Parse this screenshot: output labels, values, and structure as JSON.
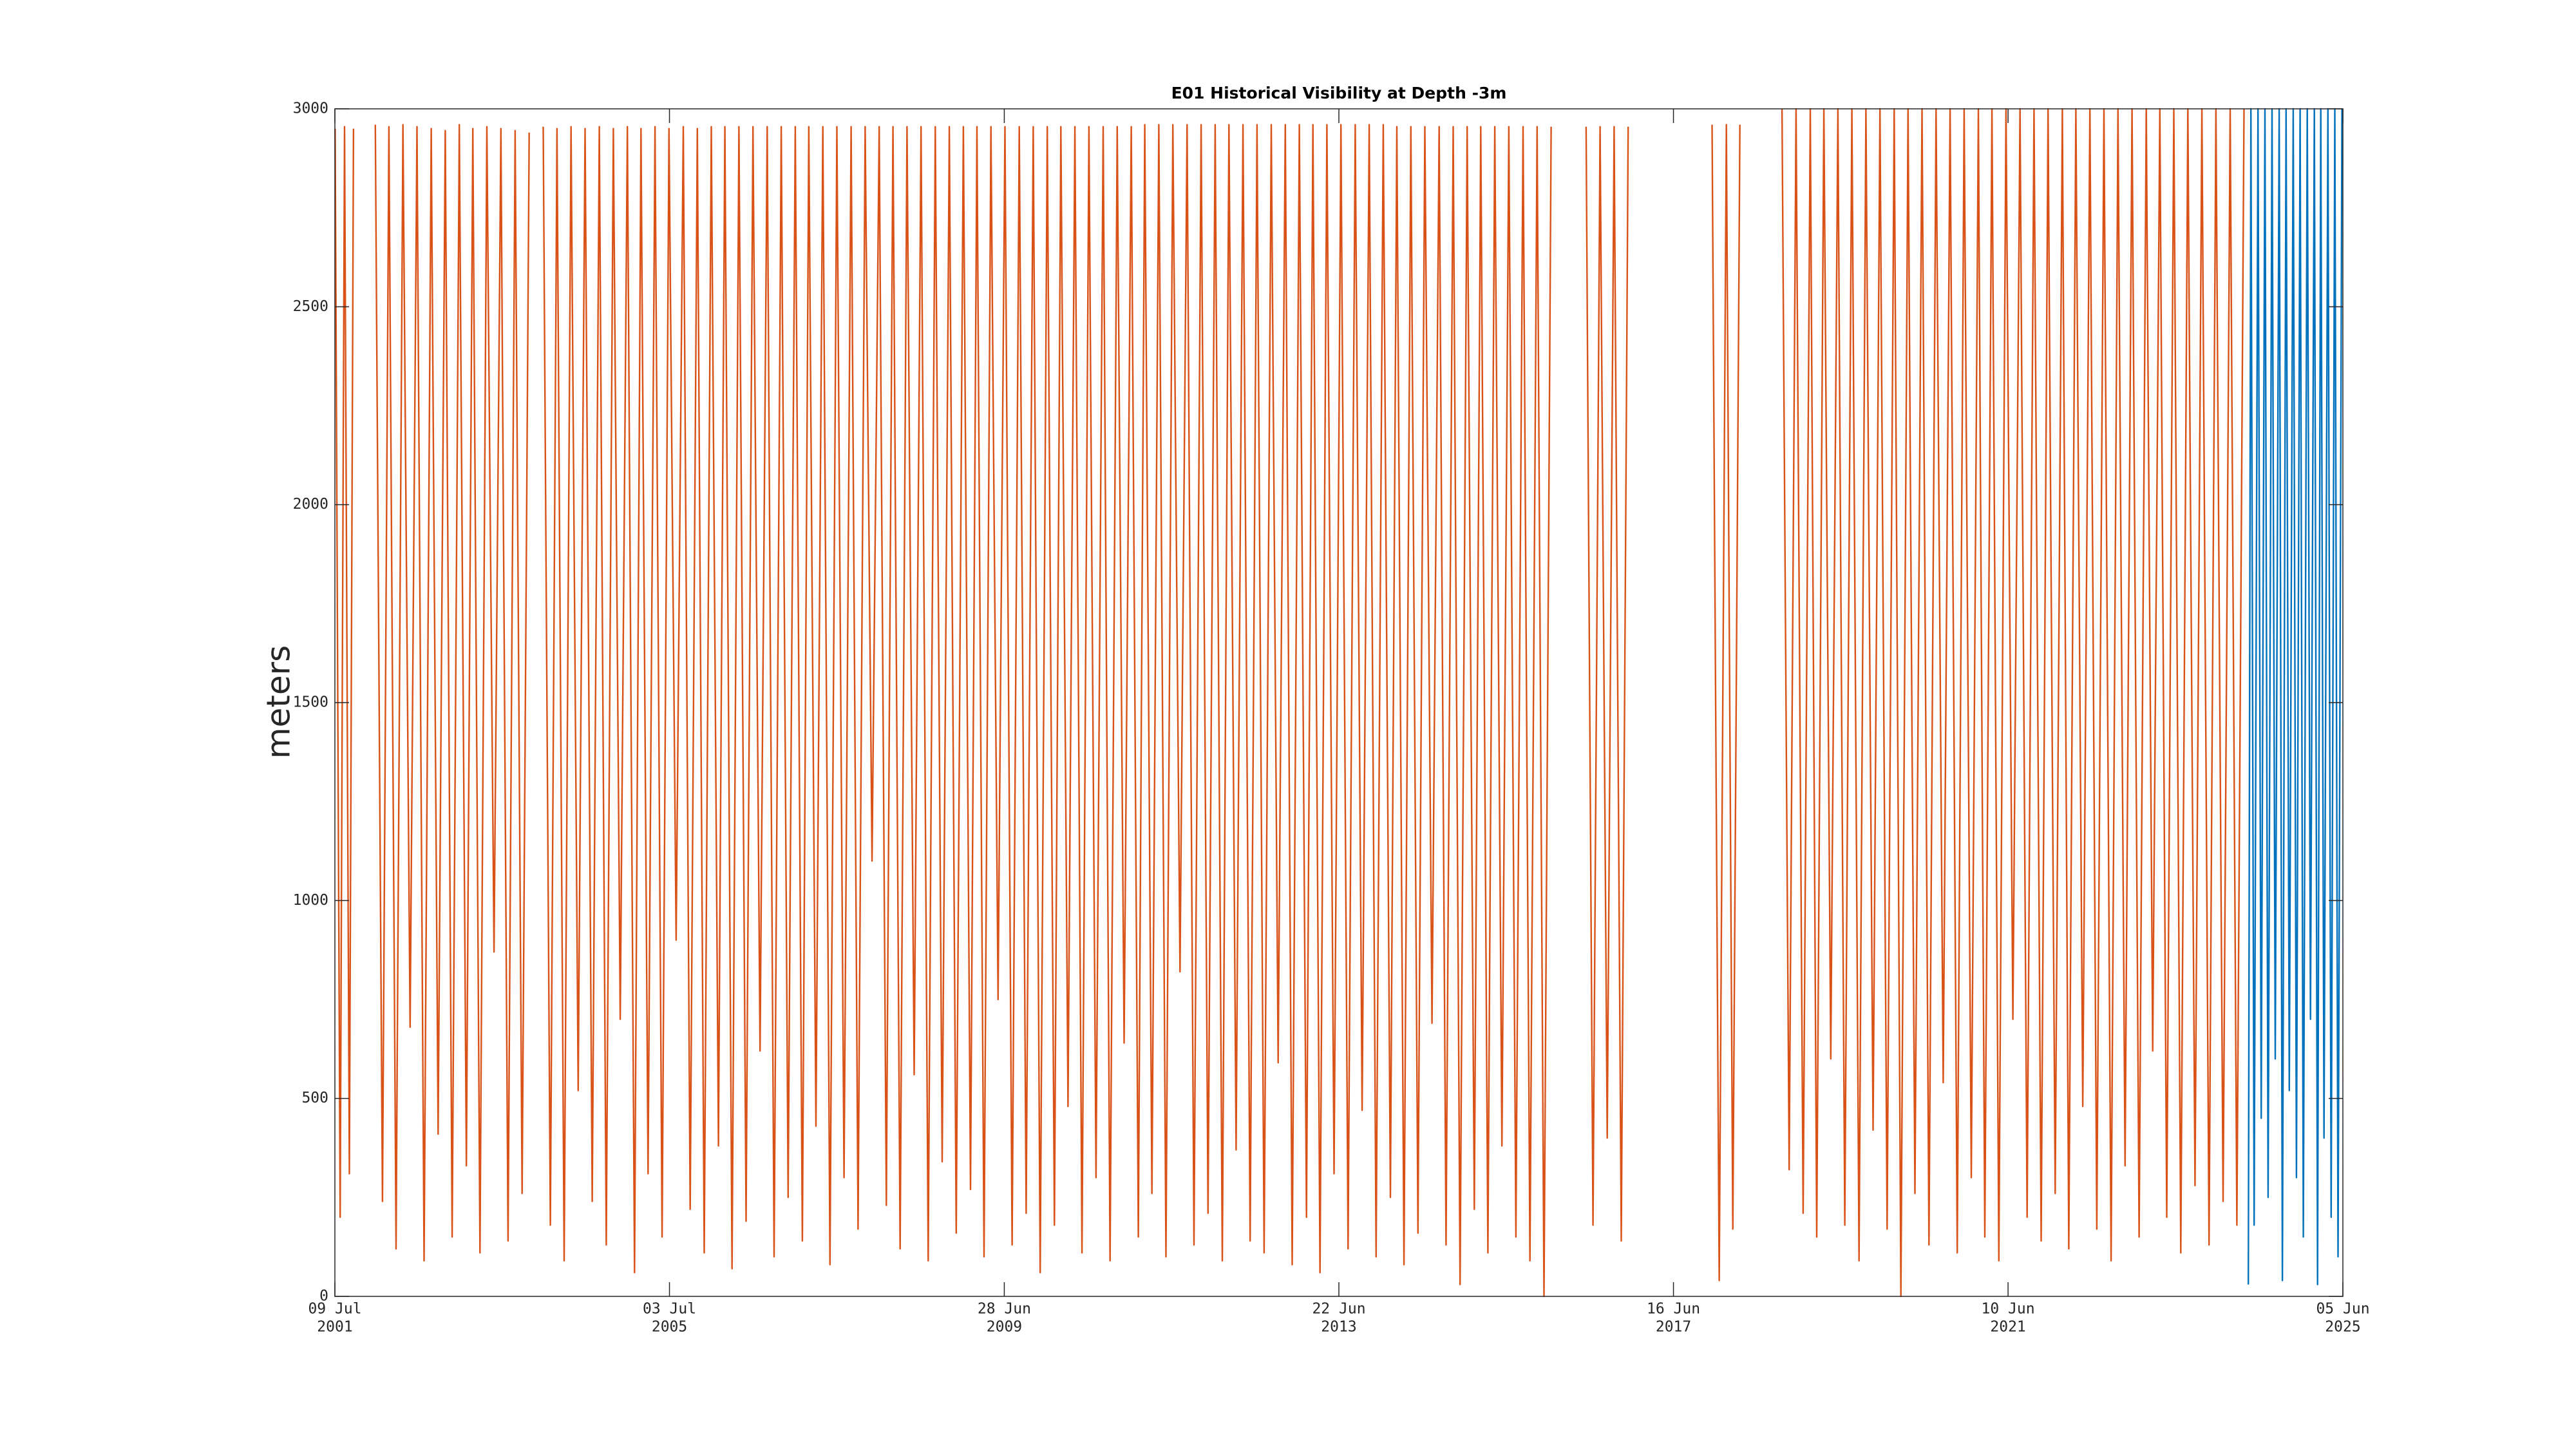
{
  "chart_data": {
    "type": "line",
    "title": "E01 Historical Visibility at Depth -3m",
    "ylabel": "meters",
    "xlim": [
      "2001-07-09",
      "2025-06-05"
    ],
    "xticks": [
      {
        "value": "2001-07-09",
        "label": [
          "09 Jul",
          "2001"
        ]
      },
      {
        "value": "2005-07-03",
        "label": [
          "03 Jul",
          "2005"
        ]
      },
      {
        "value": "2009-06-28",
        "label": [
          "28 Jun",
          "2009"
        ]
      },
      {
        "value": "2013-06-22",
        "label": [
          "22 Jun",
          "2013"
        ]
      },
      {
        "value": "2017-06-16",
        "label": [
          "16 Jun",
          "2017"
        ]
      },
      {
        "value": "2021-06-10",
        "label": [
          "10 Jun",
          "2021"
        ]
      },
      {
        "value": "2025-06-05",
        "label": [
          "05 Jun",
          "2025"
        ]
      }
    ],
    "ylim": [
      0,
      3000
    ],
    "yticks": [
      0,
      500,
      1000,
      1500,
      2000,
      2500,
      3000
    ],
    "grid": false,
    "series": [
      {
        "color": "#D95319",
        "x": [
          "2001-07-10",
          "2001-08-01",
          "2001-08-20",
          "2001-09-10",
          "2001-09-28",
          "2001-12-01",
          "2002-01-01",
          "2002-02-01",
          "2002-03-01",
          "2002-04-01",
          "2002-05-01",
          "2002-06-01",
          "2002-07-01",
          "2002-08-01",
          "2002-09-01",
          "2002-10-01",
          "2002-11-01",
          "2002-12-01",
          "2003-01-01",
          "2003-02-01",
          "2003-03-01",
          "2003-04-01",
          "2003-05-01",
          "2003-06-01",
          "2003-07-01",
          "2003-08-01",
          "2003-09-01",
          "2003-10-01",
          "2003-11-01",
          "2003-12-15",
          "2004-01-01",
          "2004-02-01",
          "2004-03-01",
          "2004-04-01",
          "2004-05-01",
          "2004-06-01",
          "2004-07-01",
          "2004-08-01",
          "2004-09-01",
          "2004-10-01",
          "2004-11-01",
          "2004-12-01",
          "2005-01-01",
          "2005-02-01",
          "2005-03-01",
          "2005-04-01",
          "2005-05-01",
          "2005-06-01",
          "2005-07-01",
          "2005-08-01",
          "2005-09-01",
          "2005-10-01",
          "2005-11-01",
          "2005-12-01",
          "2006-01-01",
          "2006-02-01",
          "2006-03-01",
          "2006-04-01",
          "2006-05-01",
          "2006-06-01",
          "2006-07-01",
          "2006-08-01",
          "2006-09-01",
          "2006-10-01",
          "2006-11-01",
          "2006-12-01",
          "2007-01-01",
          "2007-02-01",
          "2007-03-01",
          "2007-04-01",
          "2007-05-01",
          "2007-06-01",
          "2007-07-01",
          "2007-08-01",
          "2007-09-01",
          "2007-10-01",
          "2007-11-01",
          "2007-12-01",
          "2008-01-01",
          "2008-02-01",
          "2008-03-01",
          "2008-04-01",
          "2008-05-01",
          "2008-06-01",
          "2008-07-01",
          "2008-08-01",
          "2008-09-01",
          "2008-10-01",
          "2008-11-01",
          "2008-12-01",
          "2009-01-01",
          "2009-02-01",
          "2009-03-01",
          "2009-04-01",
          "2009-05-01",
          "2009-06-01",
          "2009-07-01",
          "2009-08-01",
          "2009-09-01",
          "2009-10-01",
          "2009-11-01",
          "2009-12-01",
          "2010-01-01",
          "2010-02-01",
          "2010-03-01",
          "2010-04-01",
          "2010-05-01",
          "2010-06-01",
          "2010-07-01",
          "2010-08-01",
          "2010-09-01",
          "2010-10-01",
          "2010-11-01",
          "2010-12-01",
          "2011-01-01",
          "2011-02-01",
          "2011-03-01",
          "2011-04-01",
          "2011-05-01",
          "2011-06-01",
          "2011-07-01",
          "2011-08-01",
          "2011-09-01",
          "2011-10-01",
          "2011-11-01",
          "2011-12-01",
          "2012-01-01",
          "2012-02-01",
          "2012-03-01",
          "2012-04-01",
          "2012-05-01",
          "2012-06-01",
          "2012-07-01",
          "2012-08-01",
          "2012-09-01",
          "2012-10-01",
          "2012-11-01",
          "2012-12-01",
          "2013-01-01",
          "2013-02-01",
          "2013-03-01",
          "2013-04-01",
          "2013-05-01",
          "2013-06-01",
          "2013-07-01",
          "2013-08-01",
          "2013-09-01",
          "2013-10-01",
          "2013-11-01",
          "2013-12-01",
          "2014-01-01",
          "2014-02-01",
          "2014-03-01",
          "2014-04-01",
          "2014-05-01",
          "2014-06-01",
          "2014-07-01",
          "2014-08-01",
          "2014-09-01",
          "2014-10-01",
          "2014-11-01",
          "2014-12-01",
          "2015-01-01",
          "2015-02-01",
          "2015-03-01",
          "2015-04-01",
          "2015-05-01",
          "2015-06-01",
          "2015-07-01",
          "2015-08-01",
          "2015-09-01",
          "2015-10-01",
          "2015-11-01",
          "2015-12-01",
          "2016-01-01",
          "2016-04-01",
          "2016-06-01",
          "2016-07-01",
          "2016-08-01",
          "2016-09-01",
          "2016-10-01",
          "2016-11-01",
          "2016-12-01",
          "2017-06-01",
          "2017-12-01",
          "2018-01-01",
          "2018-02-01",
          "2018-03-01",
          "2018-04-01",
          "2018-07-01",
          "2018-10-01",
          "2018-11-01",
          "2018-12-01",
          "2019-01-01",
          "2019-02-01",
          "2019-03-01",
          "2019-04-01",
          "2019-05-01",
          "2019-06-01",
          "2019-07-01",
          "2019-08-01",
          "2019-09-01",
          "2019-10-01",
          "2019-11-01",
          "2019-12-01",
          "2020-01-01",
          "2020-02-01",
          "2020-03-01",
          "2020-04-01",
          "2020-05-01",
          "2020-06-01",
          "2020-07-01",
          "2020-08-01",
          "2020-09-01",
          "2020-10-01",
          "2020-11-01",
          "2020-12-01",
          "2021-01-01",
          "2021-02-01",
          "2021-03-01",
          "2021-04-01",
          "2021-05-01",
          "2021-06-01",
          "2021-07-01",
          "2021-08-01",
          "2021-09-01",
          "2021-10-01",
          "2021-11-01",
          "2021-12-01",
          "2022-01-01",
          "2022-02-01",
          "2022-03-01",
          "2022-04-01",
          "2022-05-01",
          "2022-06-01",
          "2022-07-01",
          "2022-08-01",
          "2022-09-01",
          "2022-10-01",
          "2022-11-01",
          "2022-12-01",
          "2023-01-01",
          "2023-02-01",
          "2023-03-01",
          "2023-04-01",
          "2023-05-01",
          "2023-06-01",
          "2023-07-01",
          "2023-08-01",
          "2023-09-01",
          "2023-10-01",
          "2023-11-01",
          "2023-12-01",
          "2024-01-01",
          "2024-02-01",
          "2024-03-01",
          "2024-04-01"
        ],
        "values": [
          2950,
          200,
          2955,
          310,
          2950,
          null,
          2960,
          240,
          2955,
          120,
          2960,
          680,
          2955,
          90,
          2950,
          410,
          2945,
          150,
          2960,
          330,
          2950,
          110,
          2955,
          870,
          2950,
          140,
          2945,
          260,
          2940,
          null,
          2955,
          180,
          2950,
          90,
          2955,
          520,
          2950,
          240,
          2955,
          130,
          2950,
          700,
          2955,
          60,
          2950,
          310,
          2955,
          150,
          2950,
          900,
          2955,
          220,
          2950,
          110,
          2955,
          380,
          2955,
          70,
          2955,
          190,
          2955,
          620,
          2955,
          100,
          2955,
          250,
          2955,
          140,
          2955,
          430,
          2955,
          80,
          2955,
          300,
          2955,
          170,
          2955,
          1100,
          2955,
          230,
          2955,
          120,
          2955,
          560,
          2955,
          90,
          2955,
          340,
          2955,
          160,
          2955,
          270,
          2955,
          100,
          2955,
          750,
          2955,
          130,
          2955,
          210,
          2955,
          60,
          2955,
          180,
          2955,
          480,
          2955,
          110,
          2955,
          300,
          2955,
          90,
          2955,
          640,
          2955,
          150,
          2960,
          260,
          2960,
          100,
          2960,
          820,
          2960,
          130,
          2960,
          210,
          2960,
          90,
          2960,
          370,
          2960,
          140,
          2960,
          110,
          2960,
          590,
          2960,
          80,
          2960,
          200,
          2960,
          60,
          2960,
          310,
          2960,
          120,
          2960,
          470,
          2960,
          100,
          2960,
          250,
          2955,
          80,
          2955,
          160,
          2955,
          690,
          2955,
          130,
          2955,
          30,
          2955,
          220,
          2955,
          110,
          2955,
          380,
          2955,
          150,
          2955,
          90,
          2955,
          0,
          2955,
          null,
          2955,
          180,
          2955,
          400,
          2955,
          140,
          2955,
          null,
          2960,
          40,
          2960,
          170,
          2960,
          null,
          3000,
          320,
          3000,
          210,
          3000,
          150,
          3000,
          600,
          3000,
          180,
          3000,
          90,
          3000,
          420,
          3000,
          170,
          3000,
          0,
          3000,
          260,
          3000,
          130,
          3000,
          540,
          3000,
          110,
          3000,
          300,
          3000,
          150,
          3000,
          90,
          3000,
          700,
          3000,
          200,
          3000,
          140,
          3000,
          260,
          3000,
          120,
          3000,
          480,
          3000,
          170,
          3000,
          90,
          3000,
          330,
          3000,
          150,
          3000,
          620,
          3000,
          200,
          3000,
          110,
          3000,
          280,
          3000,
          130,
          3000,
          240,
          3000,
          180,
          3000
        ]
      },
      {
        "color": "#0072BD",
        "x": [
          "2024-04-20",
          "2024-05-01",
          "2024-05-15",
          "2024-06-01",
          "2024-06-15",
          "2024-07-01",
          "2024-07-15",
          "2024-08-01",
          "2024-08-15",
          "2024-09-01",
          "2024-09-15",
          "2024-10-01",
          "2024-10-15",
          "2024-11-01",
          "2024-11-15",
          "2024-12-01",
          "2024-12-15",
          "2025-01-01",
          "2025-01-15",
          "2025-02-01",
          "2025-02-15",
          "2025-03-01",
          "2025-03-15",
          "2025-04-01",
          "2025-04-15",
          "2025-05-01",
          "2025-05-15",
          "2025-06-01"
        ],
        "values": [
          30,
          3000,
          180,
          3000,
          450,
          3000,
          250,
          3000,
          600,
          3000,
          40,
          3000,
          520,
          3000,
          300,
          3000,
          150,
          3000,
          700,
          3000,
          30,
          3000,
          400,
          3000,
          200,
          3000,
          100,
          3000
        ]
      }
    ]
  }
}
